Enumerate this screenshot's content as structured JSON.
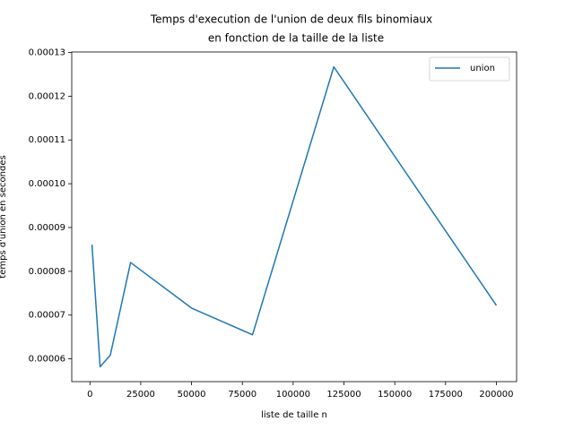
{
  "chart_data": {
    "type": "line",
    "title": [
      "Temps d'execution de l'union de deux fils binomiaux",
      "en fonction de la taille de la liste"
    ],
    "x_label": "liste de taille n",
    "y_label": "temps d'union en secondes",
    "x": [
      1000,
      5000,
      10000,
      20000,
      50000,
      80000,
      120000,
      200000
    ],
    "series": [
      {
        "name": "union",
        "color": "#1f77b4",
        "values": [
          8.61e-05,
          5.82e-05,
          6.08e-05,
          8.2e-05,
          7.16e-05,
          6.55e-05,
          0.0001267,
          7.22e-05
        ]
      }
    ],
    "xlim": [
      -8950,
      209950
    ],
    "ylim": [
      5.48e-05,
      0.0001301
    ],
    "xticks": [
      0,
      25000,
      50000,
      75000,
      100000,
      125000,
      150000,
      175000,
      200000
    ],
    "yticks": [
      6e-05,
      7e-05,
      8e-05,
      9e-05,
      {
        "value": 0.0001,
        "label": "0.00010"
      },
      0.00011,
      0.00012,
      0.00013
    ],
    "legend": "upper right",
    "grid": false
  }
}
